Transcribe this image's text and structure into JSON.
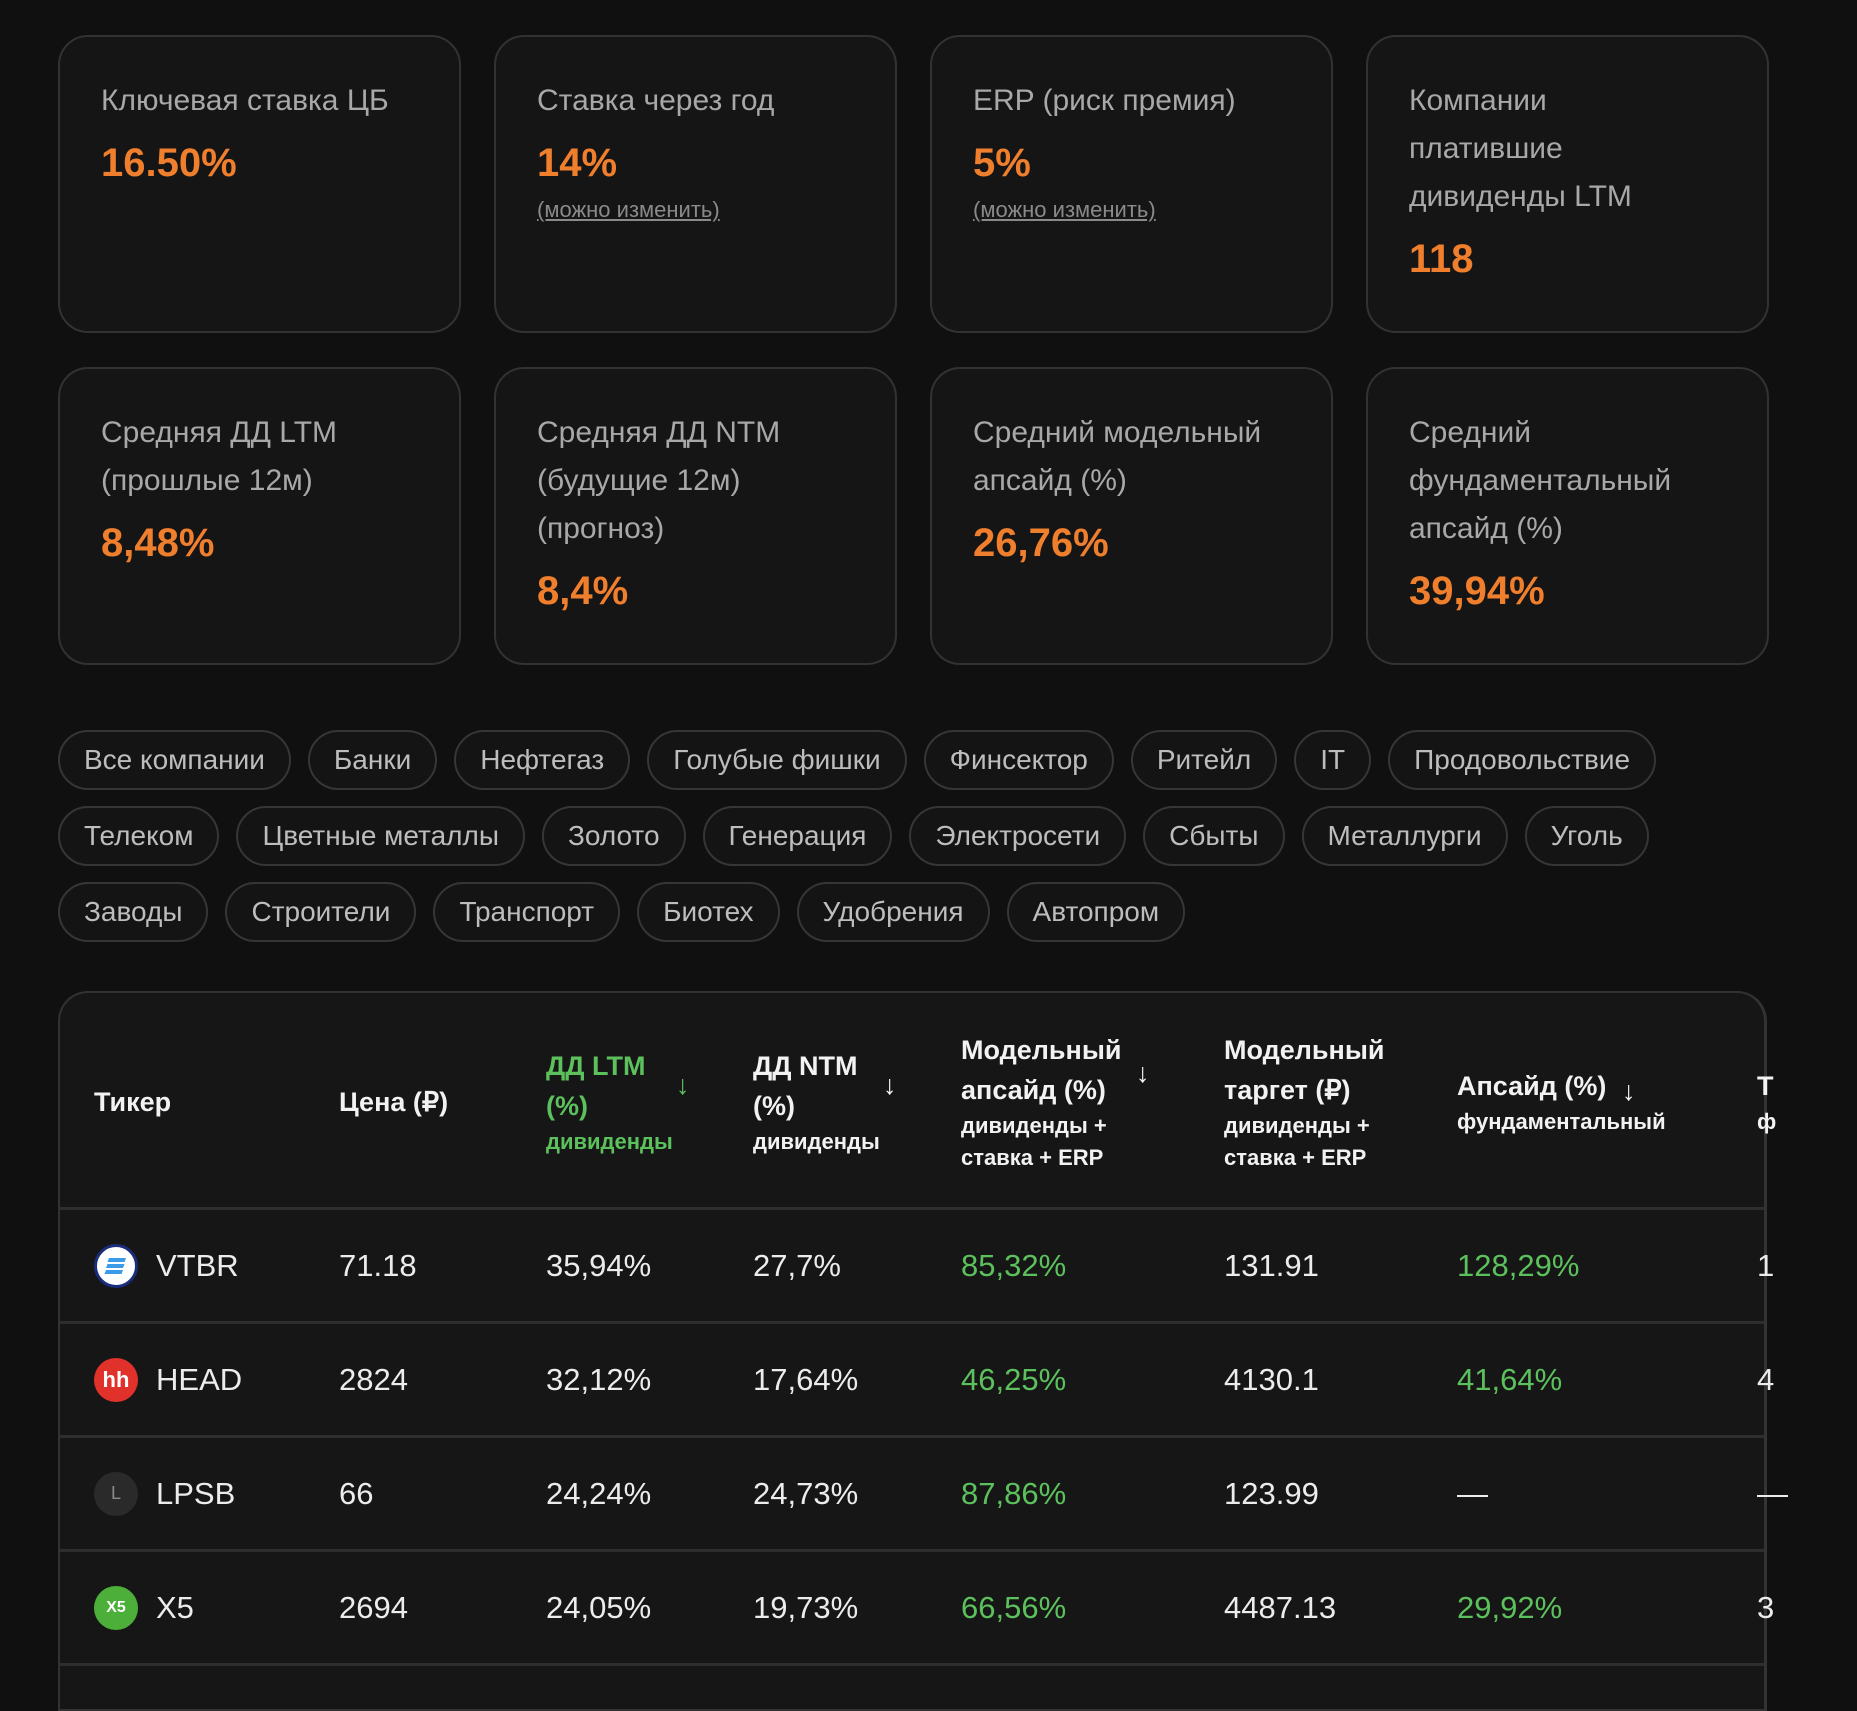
{
  "cards": [
    {
      "label": "Ключевая ставка ЦБ",
      "value": "16.50%"
    },
    {
      "label": "Ставка через год",
      "value": "14%",
      "hint": "(можно изменить)"
    },
    {
      "label": "ERP (риск премия)",
      "value": "5%",
      "hint": "(можно изменить)"
    },
    {
      "label": "Компании платившие дивиденды LTM",
      "value": "118"
    },
    {
      "label": "Средняя ДД LTM (прошлые 12м)",
      "value": "8,48%"
    },
    {
      "label": "Средняя ДД NTM (будущие 12м) (прогноз)",
      "value": "8,4%"
    },
    {
      "label": "Средний модельный апсайд (%)",
      "value": "26,76%"
    },
    {
      "label": "Средний фундаментальный апсайд (%)",
      "value": "39,94%"
    }
  ],
  "filters": [
    "Все компании",
    "Банки",
    "Нефтегаз",
    "Голубые фишки",
    "Финсектор",
    "Ритейл",
    "IT",
    "Продовольствие",
    "Телеком",
    "Цветные металлы",
    "Золото",
    "Генерация",
    "Электросети",
    "Сбыты",
    "Металлурги",
    "Уголь",
    "Заводы",
    "Строители",
    "Транспорт",
    "Биотех",
    "Удобрения",
    "Автопром"
  ],
  "table": {
    "headers": [
      {
        "title": "Тикер"
      },
      {
        "title": "Цена (₽)"
      },
      {
        "title": "ДД LTM (%)",
        "sub": "дивиденды",
        "sort": "↓",
        "active": true
      },
      {
        "title": "ДД NTM (%)",
        "sub": "дивиденды",
        "sort": "↓"
      },
      {
        "title": "Модельный апсайд (%)",
        "sub": "дивиденды + ставка + ERP",
        "sort": "↓"
      },
      {
        "title": "Модельный таргет (₽)",
        "sub": "дивиденды + ставка + ERP"
      },
      {
        "title": "Апсайд (%)",
        "sub": "фундаментальный",
        "sort": "↓"
      },
      {
        "title": "Т",
        "sub": "ф"
      }
    ],
    "rows": [
      {
        "ticker": "VTBR",
        "logo": "vtb-logo",
        "price": "71.18",
        "dd_ltm": "35,94%",
        "dd_ntm": "27,7%",
        "model_upside": "85,32%",
        "model_target": "131.91",
        "upside": "128,29%",
        "clipped": "1"
      },
      {
        "ticker": "HEAD",
        "logo": "hh-logo",
        "logo_text": "hh",
        "price": "2824",
        "dd_ltm": "32,12%",
        "dd_ntm": "17,64%",
        "model_upside": "46,25%",
        "model_target": "4130.1",
        "upside": "41,64%",
        "clipped": "4"
      },
      {
        "ticker": "LPSB",
        "logo": "letter-logo",
        "logo_text": "L",
        "price": "66",
        "dd_ltm": "24,24%",
        "dd_ntm": "24,73%",
        "model_upside": "87,86%",
        "model_target": "123.99",
        "upside": "—",
        "clipped": "—"
      },
      {
        "ticker": "X5",
        "logo": "x5-logo",
        "logo_text": "X5",
        "price": "2694",
        "dd_ltm": "24,05%",
        "dd_ntm": "19,73%",
        "model_upside": "66,56%",
        "model_target": "4487.13",
        "upside": "29,92%",
        "clipped": "3"
      }
    ]
  },
  "colors": {
    "accent_orange": "#f07f2d",
    "positive_green": "#5cc15c",
    "background": "#101010",
    "card": "#151515"
  }
}
